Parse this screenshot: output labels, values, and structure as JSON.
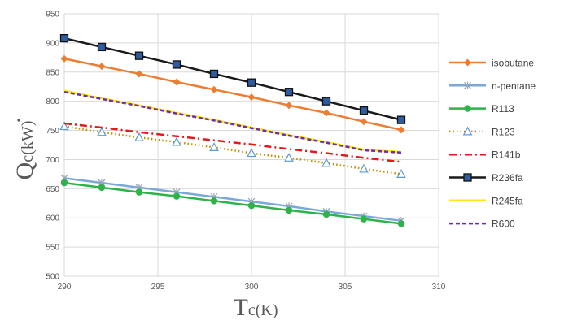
{
  "chart_data": {
    "type": "line",
    "x": [
      290,
      292,
      294,
      296,
      298,
      300,
      302,
      304,
      306,
      308
    ],
    "xlim": [
      290,
      310
    ],
    "xticks": [
      290,
      295,
      300,
      305,
      310
    ],
    "ylim": [
      500,
      950
    ],
    "yticks": [
      500,
      550,
      600,
      650,
      700,
      750,
      800,
      850,
      900,
      950
    ],
    "grid": true,
    "legend_position": "right",
    "x_label_main": "T",
    "x_label_sub": "c",
    "x_label_unit": "(K)",
    "y_label_main": "Q",
    "y_label_sub": "c",
    "y_label_unit": "(kW)",
    "series": [
      {
        "name": "isobutane",
        "color": "#ED7D31",
        "dash": "solid",
        "marker": "diamond",
        "values": [
          873,
          860,
          847,
          833,
          820,
          807,
          793,
          780,
          765,
          751
        ]
      },
      {
        "name": "n-pentane",
        "color": "#7BA7D9",
        "dash": "solid",
        "marker": "star",
        "values": [
          668,
          660,
          652,
          644,
          636,
          628,
          620,
          611,
          603,
          595
        ]
      },
      {
        "name": "R113",
        "color": "#2DB34A",
        "dash": "solid",
        "marker": "circle",
        "values": [
          660,
          652,
          644,
          637,
          629,
          621,
          613,
          606,
          598,
          590
        ]
      },
      {
        "name": "R123",
        "color": "#BF9000",
        "dash": "dotted",
        "marker": "triangle",
        "values": [
          757,
          747,
          738,
          730,
          721,
          711,
          703,
          694,
          684,
          675
        ]
      },
      {
        "name": "R141b",
        "color": "#E31A1C",
        "dash": "dashdot",
        "marker": "none",
        "values": [
          762,
          755,
          747,
          740,
          733,
          726,
          718,
          711,
          703,
          696
        ]
      },
      {
        "name": "R236fa",
        "color": "#1A1A1A",
        "dash": "solid",
        "marker": "square",
        "values": [
          908,
          893,
          878,
          863,
          847,
          832,
          816,
          800,
          784,
          768
        ]
      },
      {
        "name": "R245fa",
        "color": "#FFE61A",
        "dash": "solid",
        "marker": "none",
        "values": [
          818,
          805,
          793,
          780,
          768,
          755,
          742,
          730,
          717,
          713
        ]
      },
      {
        "name": "R600",
        "color": "#6A2DB8",
        "dash": "dashed",
        "marker": "none",
        "values": [
          816,
          804,
          792,
          779,
          767,
          754,
          741,
          729,
          716,
          712
        ]
      }
    ]
  }
}
